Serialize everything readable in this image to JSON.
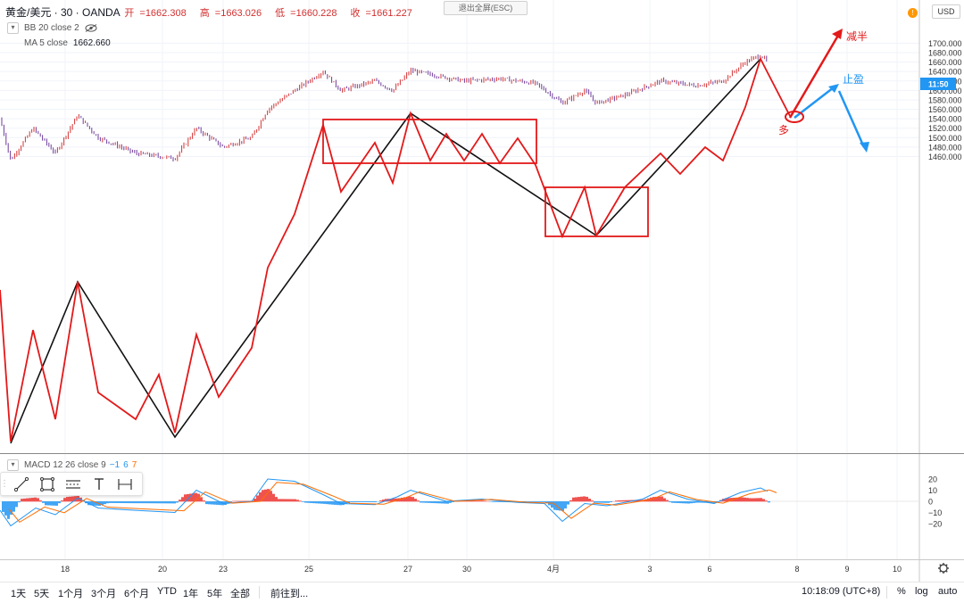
{
  "header": {
    "symbol": "黄金/美元 · 30 · OANDA",
    "ohlc": [
      {
        "k": "开",
        "v": "1662.308"
      },
      {
        "k": "高",
        "v": "1663.026"
      },
      {
        "k": "低",
        "v": "1660.228"
      },
      {
        "k": "收",
        "v": "1661.227"
      }
    ],
    "bb_label": "BB 20 close 2",
    "ma_label": "MA 5 close",
    "ma_value": "1662.660",
    "exit_fullscreen": "退出全屏(ESC)",
    "currency": "USD",
    "alert_badge": "!"
  },
  "colors": {
    "up": "#26a69a",
    "down": "#ef5350",
    "candle": "#9e2a2a",
    "annot_red": "#e3191a",
    "annot_blue": "#2196f3",
    "macd_line": "#2196f3",
    "signal_line": "#ff6d00",
    "price_tag": "#2196f3"
  },
  "chart_data": {
    "type": "candlestick",
    "price_axis": {
      "labels": [
        "1680.000",
        "1660.000",
        "1640.000",
        "1620.000",
        "1600.000",
        "1580.000",
        "1560.000",
        "1540.000",
        "1520.000",
        "1500.000",
        "1480.000",
        "1460.000"
      ],
      "top_label_partial": "1700.000"
    },
    "last_price_tag": "11:50",
    "x_labels": [
      "18",
      "20",
      "23",
      "25",
      "27",
      "30",
      "4月",
      "3",
      "6",
      "8",
      "9",
      "10"
    ],
    "macd": {
      "label": "MACD 12 26 close 9",
      "values": [
        "−1",
        "6",
        "7"
      ],
      "axis_labels": [
        "20",
        "10",
        "0",
        "−10",
        "−20"
      ]
    },
    "annotations": {
      "reduce_half": "减半",
      "take_profit": "止盈",
      "long": "多"
    }
  },
  "toolbox": {
    "tools": [
      "trend-line",
      "rectangle",
      "parallel-channel",
      "text",
      "measure"
    ]
  },
  "bottom_bar": {
    "ranges": [
      "1天",
      "5天",
      "1个月",
      "3个月",
      "6个月",
      "YTD",
      "1年",
      "5年",
      "全部"
    ],
    "goto": "前往到...",
    "clock": "10:18:09 (UTC+8)",
    "percent": "%",
    "log": "log",
    "auto": "auto"
  }
}
